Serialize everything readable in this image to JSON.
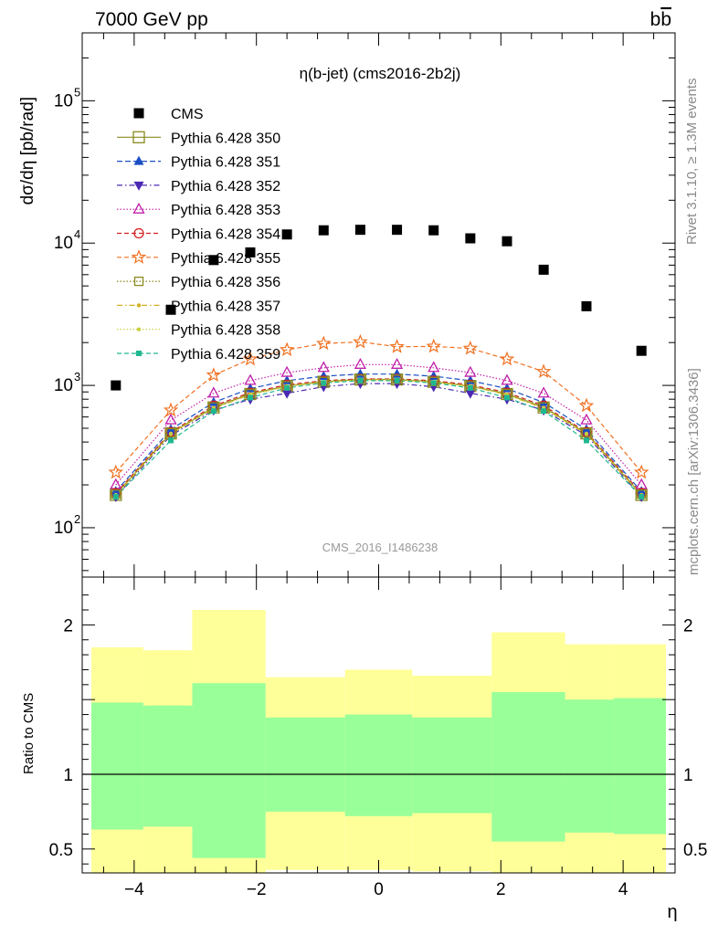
{
  "header": {
    "left": "7000 GeV pp",
    "right": "bb̅"
  },
  "side_text": {
    "rivet": "Rivet 3.1.10, ≥ 1.3M events",
    "mcplots": "mcplots.cern.ch [arXiv:1306.3436]"
  },
  "chart_data": [
    {
      "type": "scatter",
      "title": "η(b-jet) (cms2016-2b2j)",
      "watermark": "CMS_2016_I1486238",
      "xlabel": "η",
      "ylabel": "dσ/dη [pb/rad]",
      "yscale": "log",
      "xlim": [
        -4.85,
        4.85
      ],
      "ylim": [
        45,
        300000
      ],
      "yticks": [
        100,
        1000,
        10000,
        100000
      ],
      "ytick_labels": [
        "10",
        "10",
        "10",
        "10"
      ],
      "ytick_exponents": [
        "2",
        "3",
        "4",
        "5"
      ],
      "x": [
        -4.3,
        -3.4,
        -2.7,
        -2.1,
        -1.5,
        -0.9,
        -0.3,
        0.3,
        0.9,
        1.5,
        2.1,
        2.7,
        3.4,
        4.3
      ],
      "legend_position": "top-left",
      "series": [
        {
          "name": "CMS",
          "color": "#000000",
          "marker": "square-filled",
          "dash": "none",
          "values": [
            1000,
            3400,
            7600,
            8600,
            11500,
            12300,
            12400,
            12400,
            12300,
            10800,
            10300,
            6500,
            3600,
            1750
          ]
        },
        {
          "name": "Pythia 6.428 350",
          "color": "#8a8a20",
          "marker": "square-open",
          "dash": "solid",
          "values": [
            170,
            460,
            700,
            870,
            990,
            1060,
            1100,
            1100,
            1060,
            990,
            870,
            700,
            460,
            170
          ]
        },
        {
          "name": "Pythia 6.428 351",
          "color": "#1a4fc4",
          "marker": "triangle-up-filled",
          "dash": "6,3",
          "values": [
            180,
            490,
            760,
            950,
            1080,
            1160,
            1200,
            1200,
            1160,
            1080,
            950,
            760,
            490,
            180
          ]
        },
        {
          "name": "Pythia 6.428 352",
          "color": "#4b28b4",
          "marker": "triangle-down-filled",
          "dash": "6,3,1.5,3",
          "values": [
            165,
            445,
            670,
            800,
            880,
            980,
            1030,
            1030,
            980,
            880,
            800,
            670,
            445,
            165
          ]
        },
        {
          "name": "Pythia 6.428 353",
          "color": "#c020a8",
          "marker": "triangle-up-open",
          "dash": "1.5,2",
          "values": [
            200,
            570,
            880,
            1080,
            1230,
            1330,
            1400,
            1400,
            1330,
            1230,
            1080,
            880,
            570,
            200
          ]
        },
        {
          "name": "Pythia 6.428 354",
          "color": "#d42020",
          "marker": "circle-open",
          "dash": "5,3",
          "values": [
            175,
            470,
            720,
            890,
            1010,
            1080,
            1110,
            1110,
            1080,
            1010,
            890,
            720,
            470,
            175
          ]
        },
        {
          "name": "Pythia 6.428 355",
          "color": "#f07020",
          "marker": "star-open",
          "dash": "5,3",
          "values": [
            245,
            670,
            1180,
            1530,
            1780,
            1970,
            2020,
            1870,
            1880,
            1820,
            1530,
            1250,
            720,
            245
          ]
        },
        {
          "name": "Pythia 6.428 356",
          "color": "#8a8a20",
          "marker": "square-open-small",
          "dash": "1.5,2",
          "values": [
            172,
            465,
            705,
            875,
            995,
            1065,
            1105,
            1105,
            1065,
            995,
            875,
            705,
            465,
            172
          ]
        },
        {
          "name": "Pythia 6.428 357",
          "color": "#d4b020",
          "marker": "dot",
          "dash": "6,3,1.5,3",
          "values": [
            168,
            455,
            690,
            860,
            985,
            1055,
            1095,
            1095,
            1055,
            985,
            860,
            690,
            455,
            168
          ]
        },
        {
          "name": "Pythia 6.428 358",
          "color": "#c8d040",
          "marker": "dot",
          "dash": "1.5,2",
          "values": [
            170,
            458,
            695,
            865,
            988,
            1058,
            1098,
            1098,
            1058,
            988,
            865,
            695,
            458,
            170
          ]
        },
        {
          "name": "Pythia 6.428 359",
          "color": "#20b890",
          "marker": "square-filled-small",
          "dash": "5,3",
          "values": [
            165,
            410,
            660,
            820,
            960,
            1040,
            1080,
            1080,
            1040,
            960,
            820,
            660,
            410,
            165
          ]
        }
      ]
    },
    {
      "type": "area",
      "ylabel": "Ratio to CMS",
      "xlabel": "η",
      "xlim": [
        -4.85,
        4.85
      ],
      "ylim": [
        0.34,
        2.32
      ],
      "xticks": [
        -4,
        -2,
        0,
        2,
        4
      ],
      "xtick_labels": [
        "−4",
        "−2",
        "0",
        "2",
        "4"
      ],
      "yticks": [
        0.5,
        1,
        2
      ],
      "ytick_labels": [
        "0.5",
        "1",
        "2"
      ],
      "bin_edges": [
        -4.7,
        -3.85,
        -3.05,
        -1.85,
        -0.55,
        0.55,
        1.85,
        3.05,
        3.85,
        4.7
      ],
      "bands": [
        {
          "name": "yellow",
          "color": "#ffff99",
          "lower": [
            0.34,
            0.34,
            0.34,
            0.36,
            0.36,
            0.35,
            0.34,
            0.34,
            0.34
          ],
          "upper": [
            1.85,
            1.83,
            2.1,
            1.65,
            1.7,
            1.66,
            1.95,
            1.87,
            1.87
          ]
        },
        {
          "name": "green",
          "color": "#99ff99",
          "lower": [
            0.63,
            0.65,
            0.44,
            0.75,
            0.72,
            0.74,
            0.55,
            0.61,
            0.6
          ],
          "upper": [
            1.48,
            1.46,
            1.61,
            1.38,
            1.4,
            1.38,
            1.55,
            1.5,
            1.51
          ]
        }
      ],
      "reference_line": 1
    }
  ]
}
